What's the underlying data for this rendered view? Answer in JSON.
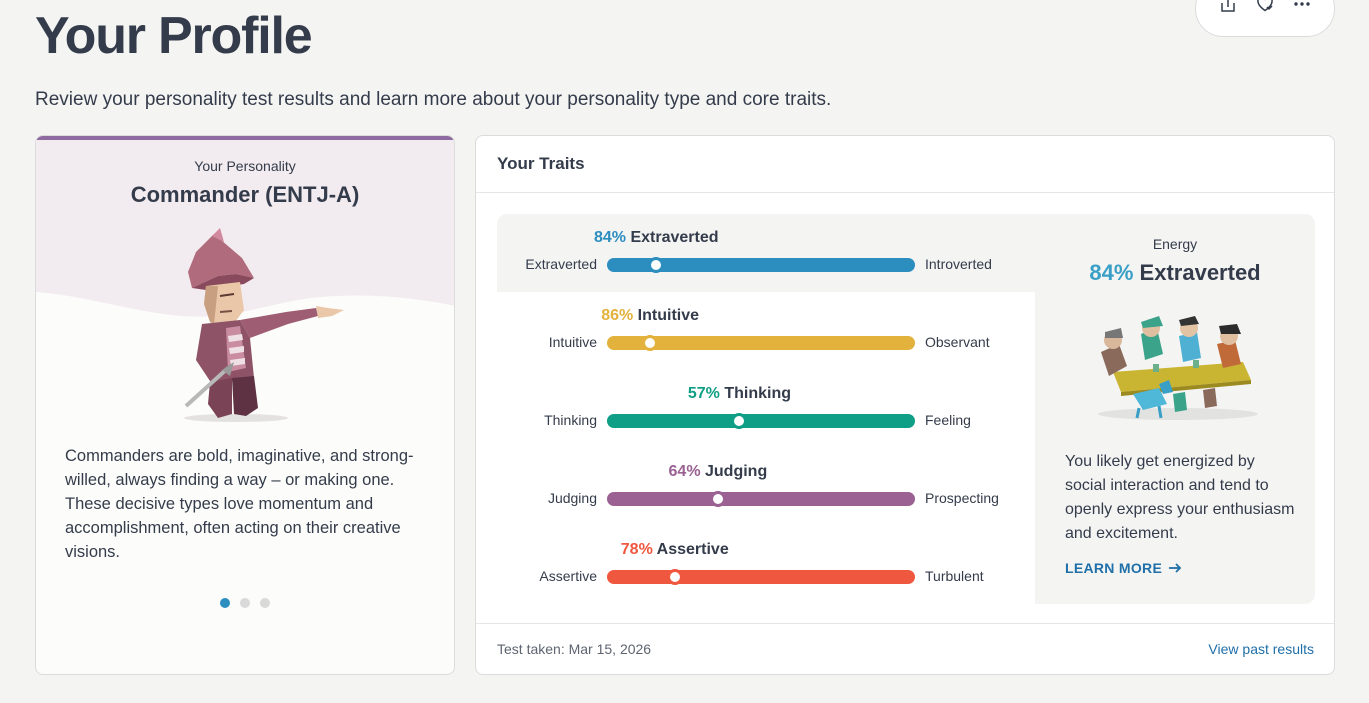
{
  "header": {
    "title": "Your Profile",
    "subtitle": "Review your personality test results and learn more about your personality type and core traits."
  },
  "actions": [
    {
      "icon": "share-icon"
    },
    {
      "icon": "favorite-icon"
    },
    {
      "icon": "more-icon"
    }
  ],
  "personality": {
    "label": "Your Personality",
    "type": "Commander (ENTJ-A)",
    "description": "Commanders are bold, imaginative, and strong-willed, always finding a way – or making one. These decisive types love momentum and accomplishment, often acting on their creative visions.",
    "carousel_total": 3,
    "carousel_active": 1
  },
  "traits": {
    "title": "Your Traits",
    "items": [
      {
        "percent": "84%",
        "name": "Extraverted",
        "left": "Extraverted",
        "right": "Introverted",
        "color": "#2c8dbf",
        "value": 16
      },
      {
        "percent": "86%",
        "name": "Intuitive",
        "left": "Intuitive",
        "right": "Observant",
        "color": "#e3b23c",
        "value": 14
      },
      {
        "percent": "57%",
        "name": "Thinking",
        "left": "Thinking",
        "right": "Feeling",
        "color": "#0f9f86",
        "value": 43
      },
      {
        "percent": "64%",
        "name": "Judging",
        "left": "Judging",
        "right": "Prospecting",
        "color": "#9a6192",
        "value": 36
      },
      {
        "percent": "78%",
        "name": "Assertive",
        "left": "Assertive",
        "right": "Turbulent",
        "color": "#f0573f",
        "value": 22
      }
    ],
    "energy": {
      "label": "Energy",
      "percent": "84%",
      "name": "Extraverted",
      "description": "You likely get energized by social interaction and tend to openly express your enthusiasm and excitement.",
      "learn_more": "LEARN MORE"
    },
    "footer": {
      "test_taken": "Test taken: Mar 15, 2026",
      "view_past": "View past results"
    }
  }
}
